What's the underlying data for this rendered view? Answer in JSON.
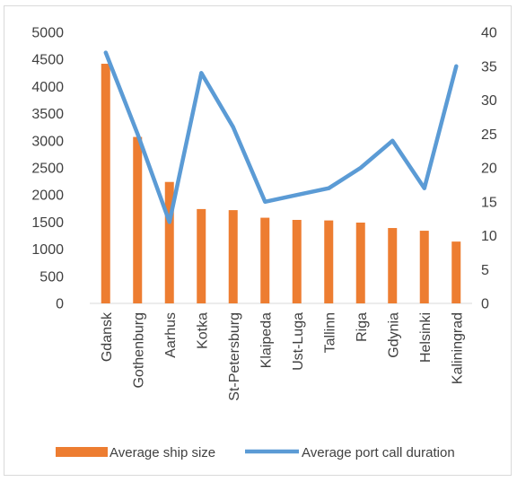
{
  "chart_data": {
    "type": "bar+line",
    "categories": [
      "Gdansk",
      "Gothenburg",
      "Aarhus",
      "Kotka",
      "St-Petersburg",
      "Klaipeda",
      "Ust-Luga",
      "Tallinn",
      "Riga",
      "Gdynia",
      "Helsinki",
      "Kaliningrad"
    ],
    "series": [
      {
        "name": "Average ship size",
        "type": "bar",
        "axis": "left",
        "color": "#ed7d31",
        "values": [
          4420,
          3070,
          2240,
          1740,
          1720,
          1580,
          1540,
          1530,
          1490,
          1390,
          1340,
          1140
        ]
      },
      {
        "name": "Average port call duration",
        "type": "line",
        "axis": "right",
        "color": "#5b9bd5",
        "values": [
          37,
          25,
          12,
          34,
          26,
          15,
          16,
          17,
          20,
          24,
          17,
          35
        ]
      }
    ],
    "y_left": {
      "min": 0,
      "max": 5000,
      "step": 500,
      "ticks": [
        "0",
        "500",
        "1000",
        "1500",
        "2000",
        "2500",
        "3000",
        "3500",
        "4000",
        "4500",
        "5000"
      ]
    },
    "y_right": {
      "min": 0,
      "max": 40,
      "step": 5,
      "ticks": [
        "0",
        "5",
        "10",
        "15",
        "20",
        "25",
        "30",
        "35",
        "40"
      ]
    },
    "grid": false,
    "legend": "bottom",
    "title": "",
    "xlabel": "",
    "ylabel": ""
  }
}
